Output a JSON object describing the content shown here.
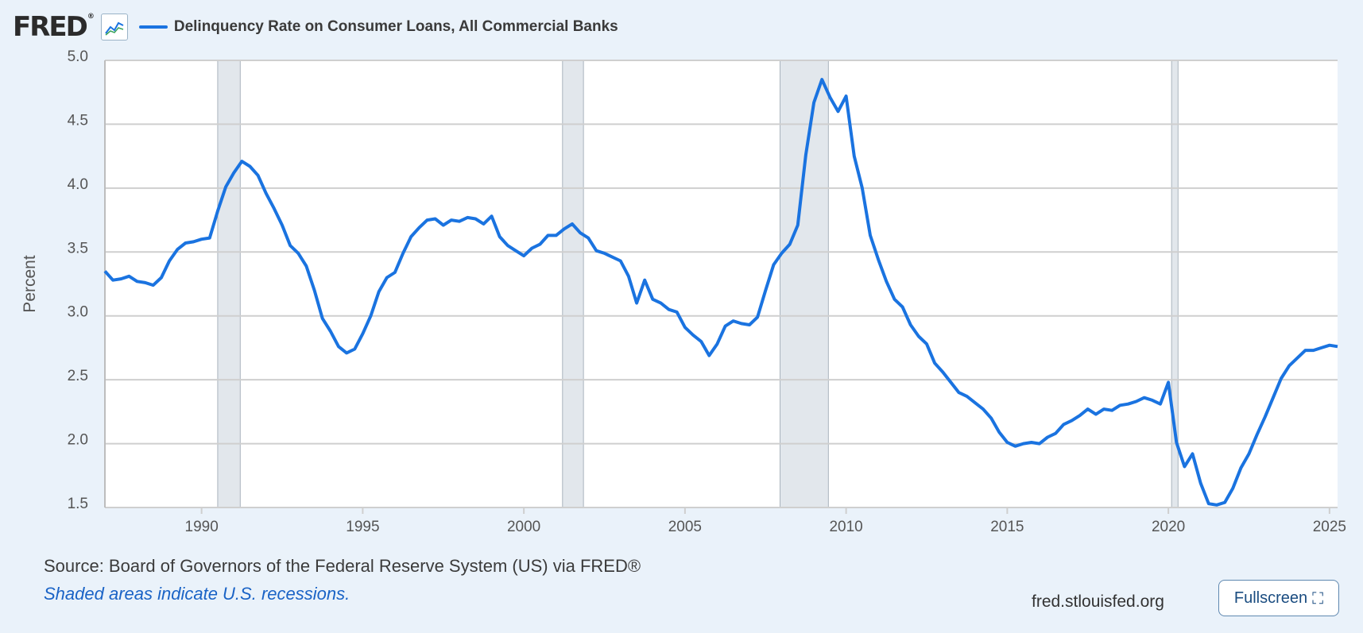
{
  "header": {
    "logo_text": "FRED",
    "logo_mark": "®",
    "graph_icon": "line-chart-icon",
    "series_title": "Delinquency Rate on Consumer Loans, All Commercial Banks"
  },
  "colors": {
    "line": "#1a73e0",
    "recession_shade": "#e2e7ec",
    "plot_background": "#ffffff",
    "page_background": "#eaf2fa"
  },
  "chart_data": {
    "type": "line",
    "ylabel": "Percent",
    "ylim": [
      1.5,
      5.0
    ],
    "xlim": [
      1987.0,
      2025.25
    ],
    "x_ticks": [
      "1990",
      "1995",
      "2000",
      "2005",
      "2010",
      "2015",
      "2020",
      "2025"
    ],
    "y_ticks": [
      "5.0",
      "4.5",
      "4.0",
      "3.5",
      "3.0",
      "2.5",
      "2.0",
      "1.5"
    ],
    "grid": true,
    "recessions": [
      [
        1990.5,
        1991.2
      ],
      [
        2001.2,
        2001.85
      ],
      [
        2007.95,
        2009.45
      ],
      [
        2020.1,
        2020.3
      ]
    ],
    "series": [
      {
        "x": [
          1987.0,
          1987.25,
          1987.5,
          1987.75,
          1988.0,
          1988.25,
          1988.5,
          1988.75,
          1989.0,
          1989.25,
          1989.5,
          1989.75,
          1990.0,
          1990.25,
          1990.5,
          1990.75,
          1991.0,
          1991.25,
          1991.5,
          1991.75,
          1992.0,
          1992.25,
          1992.5,
          1992.75,
          1993.0,
          1993.25,
          1993.5,
          1993.75,
          1994.0,
          1994.25,
          1994.5,
          1994.75,
          1995.0,
          1995.25,
          1995.5,
          1995.75,
          1996.0,
          1996.25,
          1996.5,
          1996.75,
          1997.0,
          1997.25,
          1997.5,
          1997.75,
          1998.0,
          1998.25,
          1998.5,
          1998.75,
          1999.0,
          1999.25,
          1999.5,
          1999.75,
          2000.0,
          2000.25,
          2000.5,
          2000.75,
          2001.0,
          2001.25,
          2001.5,
          2001.75,
          2002.0,
          2002.25,
          2002.5,
          2002.75,
          2003.0,
          2003.25,
          2003.5,
          2003.75,
          2004.0,
          2004.25,
          2004.5,
          2004.75,
          2005.0,
          2005.25,
          2005.5,
          2005.75,
          2006.0,
          2006.25,
          2006.5,
          2006.75,
          2007.0,
          2007.25,
          2007.5,
          2007.75,
          2008.0,
          2008.25,
          2008.5,
          2008.75,
          2009.0,
          2009.25,
          2009.5,
          2009.75,
          2010.0,
          2010.25,
          2010.5,
          2010.75,
          2011.0,
          2011.25,
          2011.5,
          2011.75,
          2012.0,
          2012.25,
          2012.5,
          2012.75,
          2013.0,
          2013.25,
          2013.5,
          2013.75,
          2014.0,
          2014.25,
          2014.5,
          2014.75,
          2015.0,
          2015.25,
          2015.5,
          2015.75,
          2016.0,
          2016.25,
          2016.5,
          2016.75,
          2017.0,
          2017.25,
          2017.5,
          2017.75,
          2018.0,
          2018.25,
          2018.5,
          2018.75,
          2019.0,
          2019.25,
          2019.5,
          2019.75,
          2020.0,
          2020.25,
          2020.5,
          2020.75,
          2021.0,
          2021.25,
          2021.5,
          2021.75,
          2022.0,
          2022.25,
          2022.5,
          2022.75,
          2023.0,
          2023.25,
          2023.5,
          2023.75,
          2024.0,
          2024.25,
          2024.5,
          2024.75,
          2025.0,
          2025.25
        ],
        "values": [
          3.35,
          3.28,
          3.29,
          3.31,
          3.27,
          3.26,
          3.24,
          3.3,
          3.43,
          3.52,
          3.57,
          3.58,
          3.6,
          3.61,
          3.82,
          4.01,
          4.12,
          4.21,
          4.17,
          4.1,
          3.96,
          3.84,
          3.71,
          3.55,
          3.49,
          3.39,
          3.2,
          2.98,
          2.88,
          2.76,
          2.71,
          2.74,
          2.86,
          3.0,
          3.19,
          3.3,
          3.34,
          3.49,
          3.62,
          3.69,
          3.75,
          3.76,
          3.71,
          3.75,
          3.74,
          3.77,
          3.76,
          3.72,
          3.78,
          3.62,
          3.55,
          3.51,
          3.47,
          3.53,
          3.56,
          3.63,
          3.63,
          3.68,
          3.72,
          3.65,
          3.61,
          3.51,
          3.49,
          3.46,
          3.43,
          3.31,
          3.1,
          3.28,
          3.13,
          3.1,
          3.05,
          3.03,
          2.91,
          2.85,
          2.8,
          2.69,
          2.78,
          2.92,
          2.96,
          2.94,
          2.93,
          2.99,
          3.2,
          3.4,
          3.49,
          3.56,
          3.71,
          4.26,
          4.67,
          4.85,
          4.71,
          4.6,
          4.72,
          4.25,
          4.0,
          3.63,
          3.44,
          3.27,
          3.13,
          3.07,
          2.93,
          2.84,
          2.78,
          2.63,
          2.56,
          2.48,
          2.4,
          2.37,
          2.32,
          2.27,
          2.2,
          2.09,
          2.01,
          1.98,
          2.0,
          2.01,
          2.0,
          2.05,
          2.08,
          2.15,
          2.18,
          2.22,
          2.27,
          2.23,
          2.27,
          2.26,
          2.3,
          2.31,
          2.33,
          2.36,
          2.34,
          2.31,
          2.48,
          2.01,
          1.82,
          1.92,
          1.69,
          1.53,
          1.52,
          1.54,
          1.65,
          1.81,
          1.92,
          2.07,
          2.21,
          2.36,
          2.51,
          2.61,
          2.67,
          2.73,
          2.73,
          2.75,
          2.77,
          2.76
        ]
      }
    ]
  },
  "footer": {
    "source": "Source: Board of Governors of the Federal Reserve System (US) via FRED®",
    "note": "Shaded areas indicate U.S. recessions.",
    "site": "fred.stlouisfed.org",
    "fullscreen_label": "Fullscreen",
    "fullscreen_icon": "expand-icon"
  }
}
